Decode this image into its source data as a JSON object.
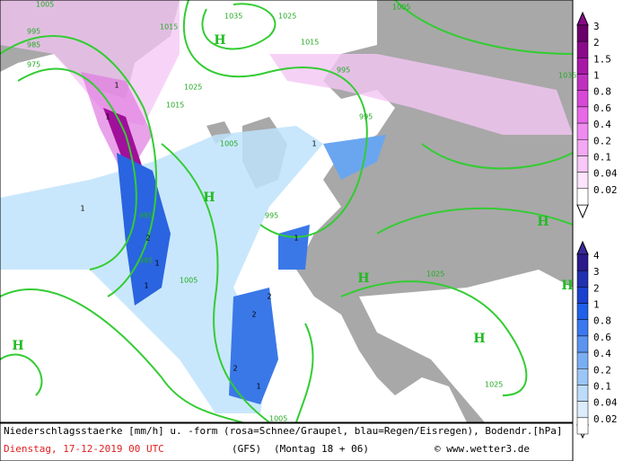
{
  "map": {
    "isobar_labels": [
      "1005",
      "1035",
      "1025",
      "1005",
      "995",
      "985",
      "975",
      "1015",
      "1015",
      "1025",
      "1015",
      "995",
      "1005",
      "995",
      "985",
      "985",
      "995",
      "1005",
      "1025",
      "1025",
      "1005",
      "1035"
    ],
    "high_labels": [
      "H",
      "H",
      "H",
      "H",
      "H",
      "H",
      "H"
    ],
    "precip_labels": [
      "1",
      "1",
      "1",
      "2",
      "1",
      "1",
      "2",
      "1",
      "1",
      "2",
      "2",
      "1"
    ],
    "snow_scale": [
      3,
      2,
      1.5,
      1,
      0.8,
      0.6,
      0.4,
      0.2,
      0.1,
      0.04,
      0.02
    ],
    "rain_scale": [
      4,
      3,
      2,
      1,
      0.8,
      0.6,
      0.4,
      0.2,
      0.1,
      0.04,
      0.02
    ],
    "footer": {
      "description": "Niederschlagsstaerke [mm/h] u. -form (rosa=Schnee/Graupel, blau=Regen/Eisregen), Bodendr.[hPa]",
      "date": "Dienstag, 17-12-2019  00 UTC",
      "model": "(GFS)",
      "forecast": "(Montag 18 + 06)",
      "credit": "© www.wetter3.de"
    }
  }
}
